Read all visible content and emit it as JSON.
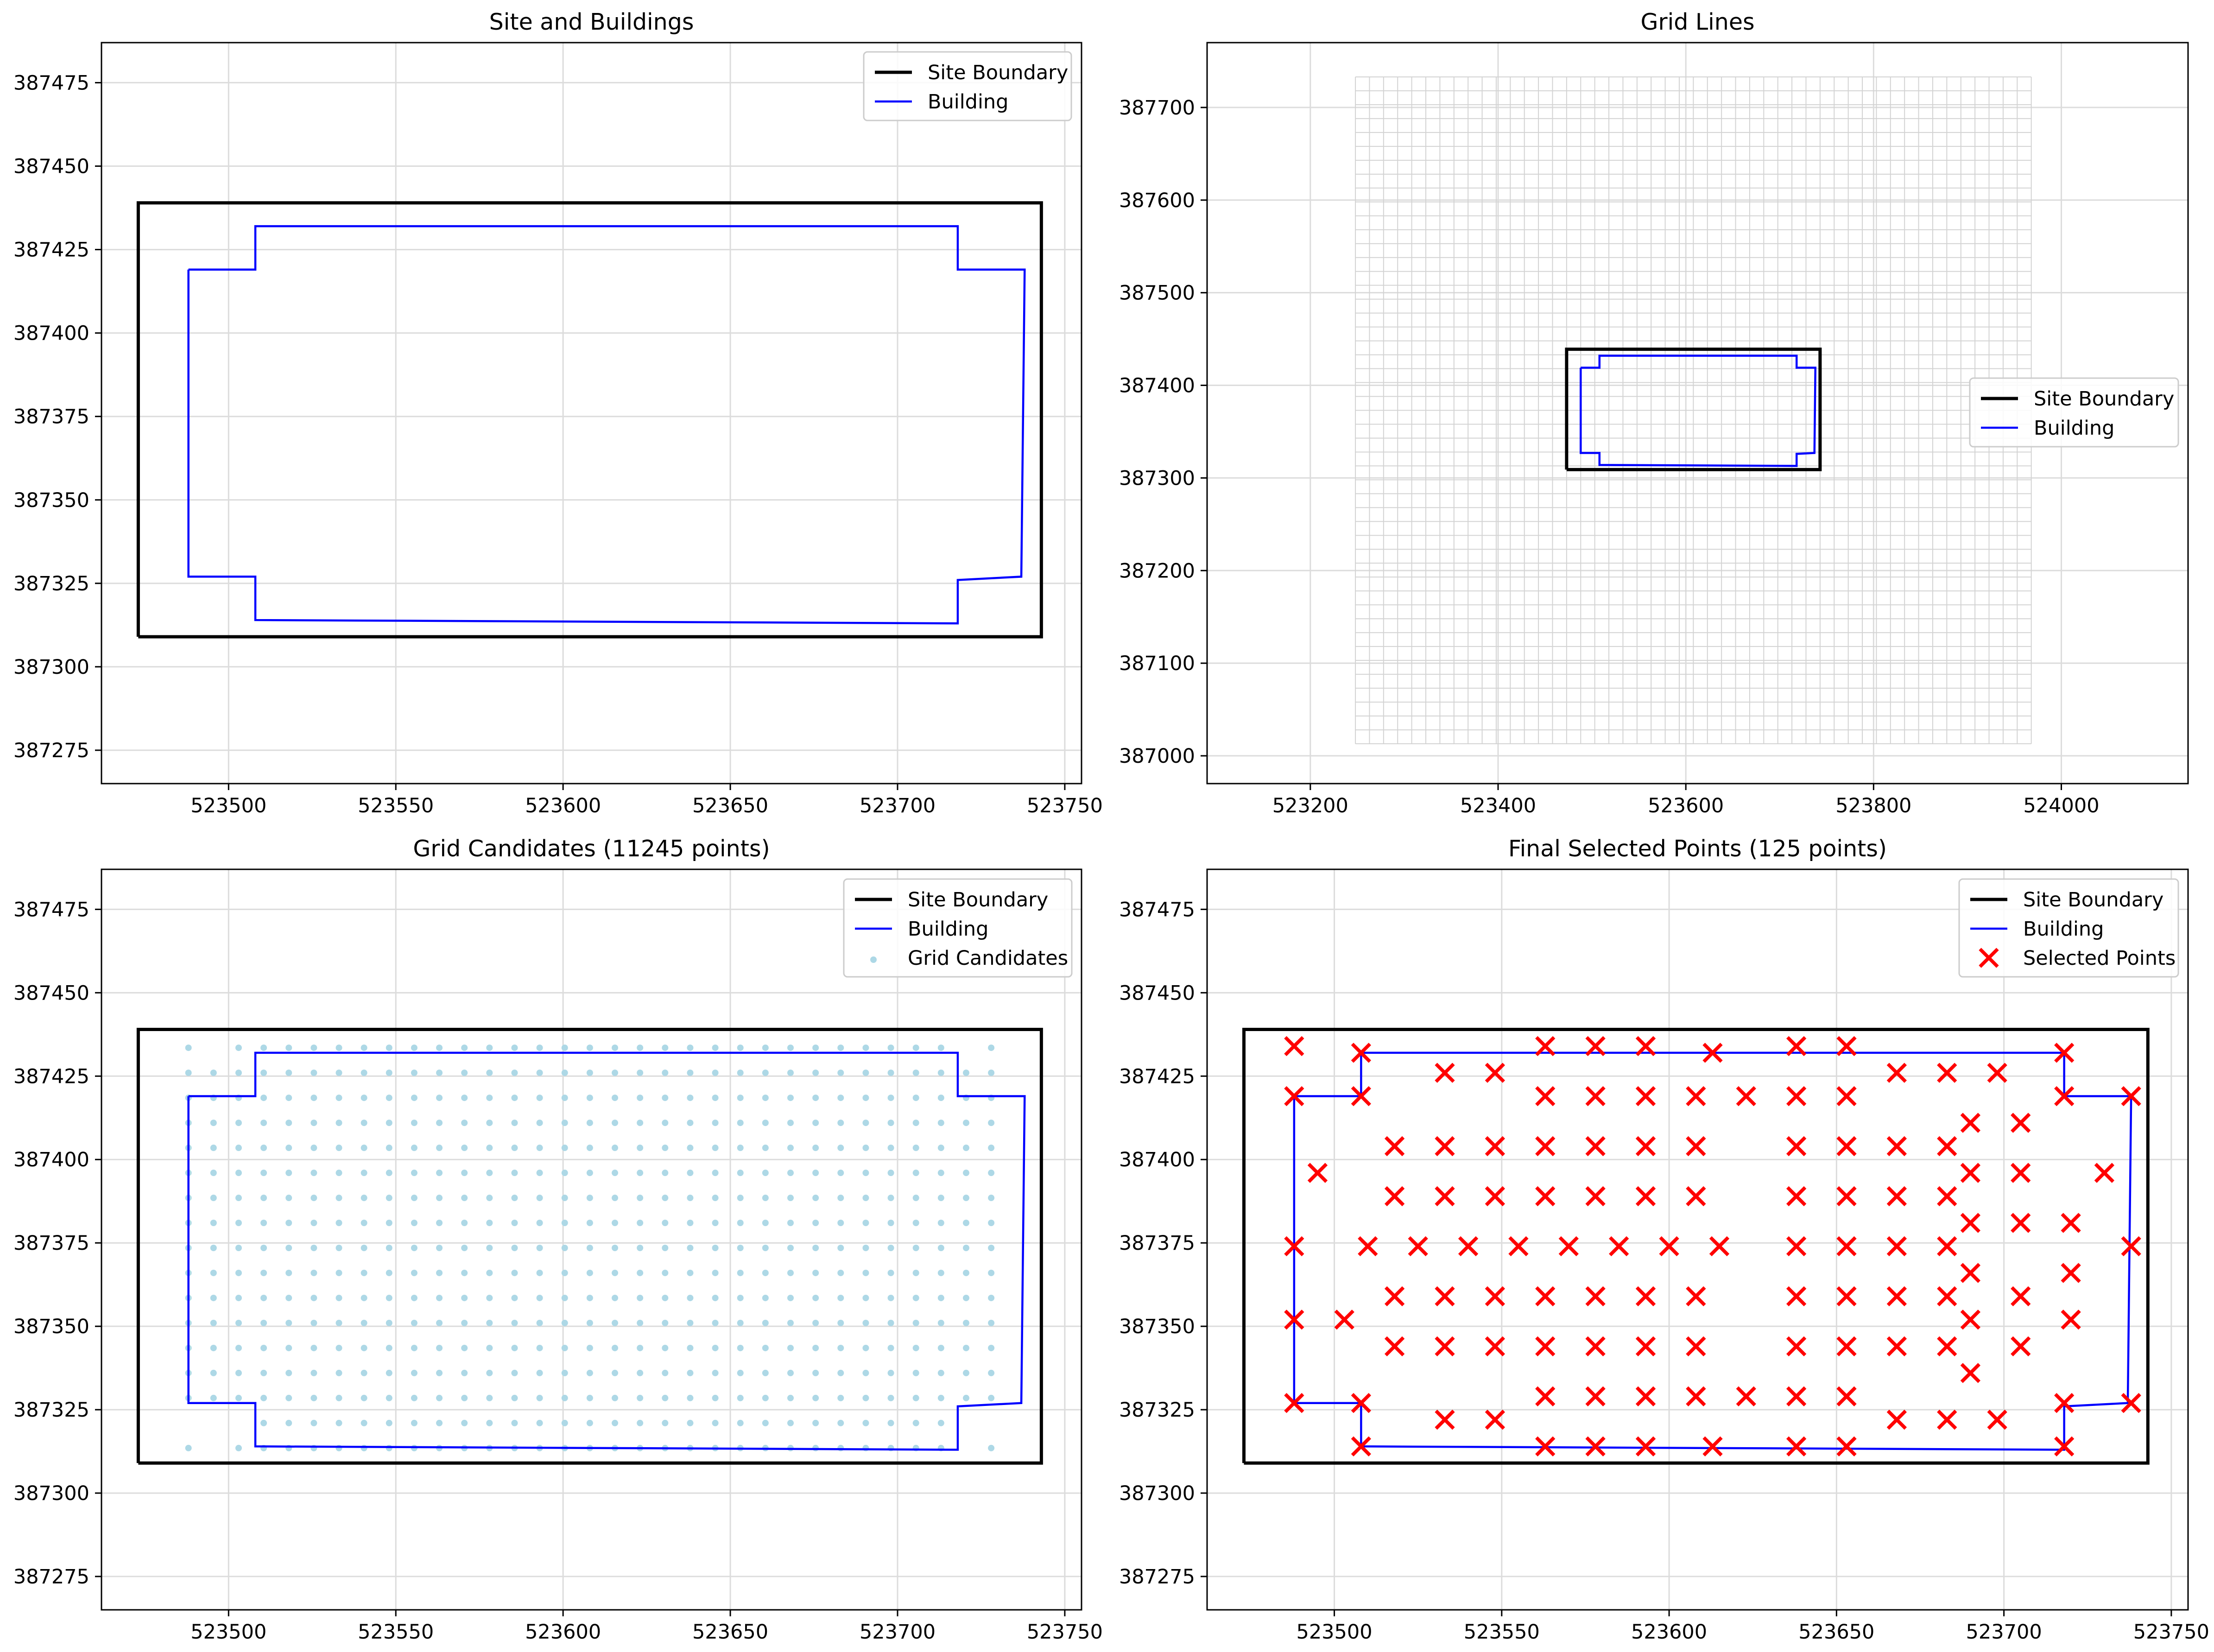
{
  "chart_data": [
    {
      "type": "scatter",
      "title": "Site and Buildings",
      "xlabel": "",
      "ylabel": "",
      "xlim": [
        523462,
        523755
      ],
      "ylim": [
        387265,
        387487
      ],
      "xticks": [
        523500,
        523550,
        523600,
        523650,
        523700,
        523750
      ],
      "yticks": [
        387275,
        387300,
        387325,
        387350,
        387375,
        387400,
        387425,
        387450,
        387475
      ],
      "grid": true,
      "legend_placement": "upper right",
      "legend": [
        "Site Boundary",
        "Building"
      ],
      "site_boundary": {
        "x": [
          523473,
          523743,
          523743,
          523473,
          523473
        ],
        "y": [
          387309,
          387309,
          387439,
          387439,
          387309
        ]
      },
      "building": {
        "x": [
          523488,
          523508,
          523508,
          523718,
          523718,
          523738,
          523737,
          523718,
          523718,
          523508,
          523508,
          523488,
          523488
        ],
        "y": [
          387419,
          387419,
          387432,
          387432,
          387419,
          387419,
          387327,
          387326,
          387313,
          387314,
          387327,
          387327,
          387419
        ]
      }
    },
    {
      "type": "scatter",
      "title": "Grid Lines",
      "xlabel": "",
      "ylabel": "",
      "xlim": [
        523090,
        524135
      ],
      "ylim": [
        386970,
        387770
      ],
      "xticks": [
        523200,
        523400,
        523600,
        523800,
        524000
      ],
      "yticks": [
        387000,
        387100,
        387200,
        387300,
        387400,
        387500,
        387600,
        387700
      ],
      "grid": true,
      "legend_placement": "center right",
      "legend": [
        "Site Boundary",
        "Building"
      ],
      "grid_lines": {
        "x_range": [
          523248,
          523968
        ],
        "y_range": [
          387013,
          387733
        ],
        "spacing": 15
      },
      "site_boundary": {
        "x": [
          523473,
          523743,
          523743,
          523473,
          523473
        ],
        "y": [
          387309,
          387309,
          387439,
          387439,
          387309
        ]
      },
      "building": {
        "x": [
          523488,
          523508,
          523508,
          523718,
          523718,
          523738,
          523737,
          523718,
          523718,
          523508,
          523508,
          523488,
          523488
        ],
        "y": [
          387419,
          387419,
          387432,
          387432,
          387419,
          387419,
          387327,
          387326,
          387313,
          387314,
          387327,
          387327,
          387419
        ]
      }
    },
    {
      "type": "scatter",
      "title": "Grid Candidates (11245 points)",
      "xlabel": "",
      "ylabel": "",
      "xlim": [
        523462,
        523755
      ],
      "ylim": [
        387265,
        387487
      ],
      "xticks": [
        523500,
        523550,
        523600,
        523650,
        523700,
        523750
      ],
      "yticks": [
        387275,
        387300,
        387325,
        387350,
        387375,
        387400,
        387425,
        387450,
        387475
      ],
      "grid": true,
      "legend_placement": "upper right",
      "legend": [
        "Site Boundary",
        "Building",
        "Grid Candidates"
      ],
      "site_boundary": {
        "x": [
          523473,
          523743,
          523743,
          523473,
          523473
        ],
        "y": [
          387309,
          387309,
          387439,
          387439,
          387309
        ]
      },
      "building": {
        "x": [
          523488,
          523508,
          523508,
          523718,
          523718,
          523738,
          523737,
          523718,
          523718,
          523508,
          523508,
          523488,
          523488
        ],
        "y": [
          387419,
          387419,
          387432,
          387432,
          387419,
          387419,
          387327,
          387326,
          387313,
          387314,
          387327,
          387327,
          387419
        ]
      },
      "candidates": {
        "x_start": 523488,
        "x_end": 523728,
        "x_step": 7.5,
        "y_start": 387313.5,
        "y_end": 387433.5,
        "y_step": 7.5
      }
    },
    {
      "type": "scatter",
      "title": "Final Selected Points (125 points)",
      "xlabel": "",
      "ylabel": "",
      "xlim": [
        523462,
        523755
      ],
      "ylim": [
        387265,
        387487
      ],
      "xticks": [
        523500,
        523550,
        523600,
        523650,
        523700,
        523750
      ],
      "yticks": [
        387275,
        387300,
        387325,
        387350,
        387375,
        387400,
        387425,
        387450,
        387475
      ],
      "grid": true,
      "legend_placement": "upper right",
      "legend": [
        "Site Boundary",
        "Building",
        "Selected Points"
      ],
      "site_boundary": {
        "x": [
          523473,
          523743,
          523743,
          523473,
          523473
        ],
        "y": [
          387309,
          387309,
          387439,
          387439,
          387309
        ]
      },
      "building": {
        "x": [
          523488,
          523508,
          523508,
          523718,
          523718,
          523738,
          523737,
          523718,
          523718,
          523508,
          523508,
          523488,
          523488
        ],
        "y": [
          387419,
          387419,
          387432,
          387432,
          387419,
          387419,
          387327,
          387326,
          387313,
          387314,
          387327,
          387327,
          387419
        ]
      },
      "selected_points": [
        [
          523488,
          387434
        ],
        [
          523508,
          387432
        ],
        [
          523563,
          387434
        ],
        [
          523578,
          387434
        ],
        [
          523593,
          387434
        ],
        [
          523613,
          387432
        ],
        [
          523638,
          387434
        ],
        [
          523653,
          387434
        ],
        [
          523718,
          387432
        ],
        [
          523533,
          387426
        ],
        [
          523548,
          387426
        ],
        [
          523668,
          387426
        ],
        [
          523683,
          387426
        ],
        [
          523698,
          387426
        ],
        [
          523488,
          387419
        ],
        [
          523508,
          387419
        ],
        [
          523563,
          387419
        ],
        [
          523578,
          387419
        ],
        [
          523593,
          387419
        ],
        [
          523608,
          387419
        ],
        [
          523623,
          387419
        ],
        [
          523638,
          387419
        ],
        [
          523653,
          387419
        ],
        [
          523718,
          387419
        ],
        [
          523738,
          387419
        ],
        [
          523690,
          387411
        ],
        [
          523705,
          387411
        ],
        [
          523518,
          387404
        ],
        [
          523533,
          387404
        ],
        [
          523548,
          387404
        ],
        [
          523563,
          387404
        ],
        [
          523578,
          387404
        ],
        [
          523593,
          387404
        ],
        [
          523608,
          387404
        ],
        [
          523638,
          387404
        ],
        [
          523653,
          387404
        ],
        [
          523668,
          387404
        ],
        [
          523683,
          387404
        ],
        [
          523495,
          387396
        ],
        [
          523690,
          387396
        ],
        [
          523705,
          387396
        ],
        [
          523730,
          387396
        ],
        [
          523518,
          387389
        ],
        [
          523533,
          387389
        ],
        [
          523548,
          387389
        ],
        [
          523563,
          387389
        ],
        [
          523578,
          387389
        ],
        [
          523593,
          387389
        ],
        [
          523608,
          387389
        ],
        [
          523638,
          387389
        ],
        [
          523653,
          387389
        ],
        [
          523668,
          387389
        ],
        [
          523683,
          387389
        ],
        [
          523690,
          387381
        ],
        [
          523705,
          387381
        ],
        [
          523720,
          387381
        ],
        [
          523488,
          387374
        ],
        [
          523510,
          387374
        ],
        [
          523525,
          387374
        ],
        [
          523540,
          387374
        ],
        [
          523555,
          387374
        ],
        [
          523570,
          387374
        ],
        [
          523585,
          387374
        ],
        [
          523600,
          387374
        ],
        [
          523615,
          387374
        ],
        [
          523638,
          387374
        ],
        [
          523653,
          387374
        ],
        [
          523668,
          387374
        ],
        [
          523683,
          387374
        ],
        [
          523738,
          387374
        ],
        [
          523690,
          387366
        ],
        [
          523720,
          387366
        ],
        [
          523518,
          387359
        ],
        [
          523533,
          387359
        ],
        [
          523548,
          387359
        ],
        [
          523563,
          387359
        ],
        [
          523578,
          387359
        ],
        [
          523593,
          387359
        ],
        [
          523608,
          387359
        ],
        [
          523638,
          387359
        ],
        [
          523653,
          387359
        ],
        [
          523668,
          387359
        ],
        [
          523683,
          387359
        ],
        [
          523705,
          387359
        ],
        [
          523488,
          387352
        ],
        [
          523503,
          387352
        ],
        [
          523690,
          387352
        ],
        [
          523720,
          387352
        ],
        [
          523518,
          387344
        ],
        [
          523533,
          387344
        ],
        [
          523548,
          387344
        ],
        [
          523563,
          387344
        ],
        [
          523578,
          387344
        ],
        [
          523593,
          387344
        ],
        [
          523608,
          387344
        ],
        [
          523638,
          387344
        ],
        [
          523653,
          387344
        ],
        [
          523668,
          387344
        ],
        [
          523683,
          387344
        ],
        [
          523705,
          387344
        ],
        [
          523690,
          387336
        ],
        [
          523563,
          387329
        ],
        [
          523578,
          387329
        ],
        [
          523593,
          387329
        ],
        [
          523608,
          387329
        ],
        [
          523623,
          387329
        ],
        [
          523638,
          387329
        ],
        [
          523653,
          387329
        ],
        [
          523488,
          387327
        ],
        [
          523508,
          387327
        ],
        [
          523718,
          387327
        ],
        [
          523738,
          387327
        ],
        [
          523533,
          387322
        ],
        [
          523548,
          387322
        ],
        [
          523668,
          387322
        ],
        [
          523683,
          387322
        ],
        [
          523698,
          387322
        ],
        [
          523508,
          387314
        ],
        [
          523563,
          387314
        ],
        [
          523578,
          387314
        ],
        [
          523593,
          387314
        ],
        [
          523613,
          387314
        ],
        [
          523638,
          387314
        ],
        [
          523653,
          387314
        ],
        [
          523718,
          387314
        ]
      ]
    }
  ]
}
